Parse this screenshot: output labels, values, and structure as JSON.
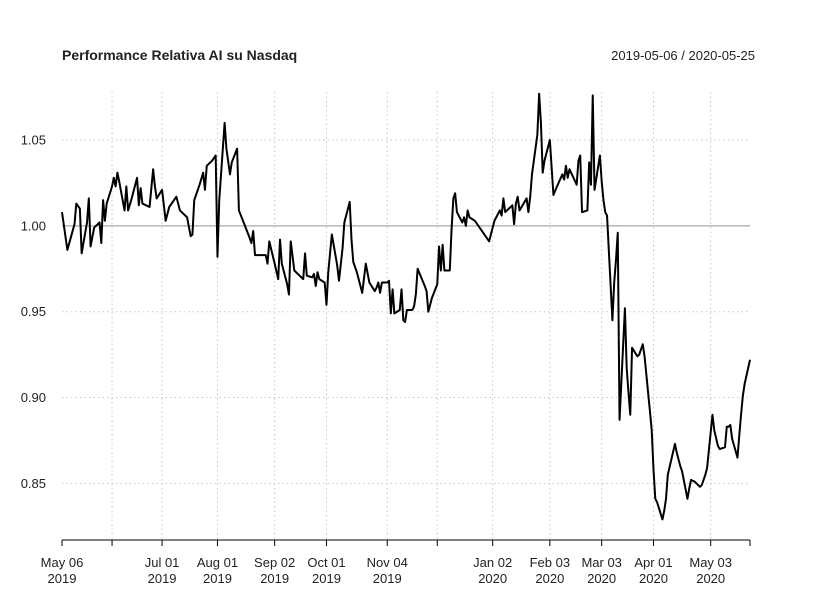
{
  "chart_data": {
    "type": "line",
    "title": "Performance Relativa AI su Nasdaq",
    "subtitle": "2019-05-06 / 2020-05-25",
    "color": "#000000",
    "grid": true,
    "reference_line": 1,
    "reference_color": "#aaaaaa",
    "xlim": [
      "2019-05-06",
      "2020-05-25"
    ],
    "ylim": [
      0.817,
      1.078
    ],
    "yticks": [
      0.85,
      {
        "value": 0.9,
        "label": "0.90"
      },
      0.95,
      {
        "value": 1,
        "label": "1.00"
      },
      1.05
    ],
    "xticks": [
      {
        "value": "2019-05-06",
        "label": [
          "May 06",
          "2019"
        ]
      },
      "2019-06-03",
      {
        "value": "2019-07-01",
        "label": [
          "Jul 01",
          "2019"
        ]
      },
      {
        "value": "2019-08-01",
        "label": [
          "Aug 01",
          "2019"
        ]
      },
      {
        "value": "2019-09-02",
        "label": [
          "Sep 02",
          "2019"
        ]
      },
      {
        "value": "2019-10-01",
        "label": [
          "Oct 01",
          "2019"
        ]
      },
      {
        "value": "2019-11-04",
        "label": [
          "Nov 04",
          "2019"
        ]
      },
      "2019-12-02",
      {
        "value": "2020-01-02",
        "label": [
          "Jan 02",
          "2020"
        ]
      },
      {
        "value": "2020-02-03",
        "label": [
          "Feb 03",
          "2020"
        ]
      },
      {
        "value": "2020-03-03",
        "label": [
          "Mar 03",
          "2020"
        ]
      },
      {
        "value": "2020-04-01",
        "label": [
          "Apr 01",
          "2020"
        ]
      },
      {
        "value": "2020-05-03",
        "label": [
          "May 03",
          "2020"
        ]
      },
      "2020-05-25"
    ],
    "x": [
      "2019-05-06",
      "2019-05-09",
      "2019-05-13",
      "2019-05-14",
      "2019-05-16",
      "2019-05-17",
      "2019-05-20",
      "2019-05-21",
      "2019-05-22",
      "2019-05-24",
      "2019-05-27",
      "2019-05-28",
      "2019-05-29",
      "2019-05-30",
      "2019-05-31",
      "2019-06-03",
      "2019-06-04",
      "2019-06-05",
      "2019-06-06",
      "2019-06-07",
      "2019-06-10",
      "2019-06-11",
      "2019-06-12",
      "2019-06-14",
      "2019-06-17",
      "2019-06-18",
      "2019-06-19",
      "2019-06-20",
      "2019-06-24",
      "2019-06-26",
      "2019-06-27",
      "2019-06-28",
      "2019-07-01",
      "2019-07-03",
      "2019-07-05",
      "2019-07-09",
      "2019-07-11",
      "2019-07-15",
      "2019-07-17",
      "2019-07-18",
      "2019-07-19",
      "2019-07-22",
      "2019-07-24",
      "2019-07-25",
      "2019-07-26",
      "2019-07-29",
      "2019-07-31",
      "2019-08-01",
      "2019-08-02",
      "2019-08-05",
      "2019-08-06",
      "2019-08-08",
      "2019-08-09",
      "2019-08-12",
      "2019-08-13",
      "2019-08-16",
      "2019-08-19",
      "2019-08-20",
      "2019-08-21",
      "2019-08-22",
      "2019-08-26",
      "2019-08-28",
      "2019-08-29",
      "2019-08-30",
      "2019-09-02",
      "2019-09-04",
      "2019-09-05",
      "2019-09-06",
      "2019-09-09",
      "2019-09-10",
      "2019-09-11",
      "2019-09-13",
      "2019-09-16",
      "2019-09-18",
      "2019-09-19",
      "2019-09-20",
      "2019-09-23",
      "2019-09-24",
      "2019-09-25",
      "2019-09-26",
      "2019-09-27",
      "2019-09-30",
      "2019-10-01",
      "2019-10-02",
      "2019-10-04",
      "2019-10-07",
      "2019-10-08",
      "2019-10-10",
      "2019-10-11",
      "2019-10-14",
      "2019-10-15",
      "2019-10-16",
      "2019-10-18",
      "2019-10-21",
      "2019-10-23",
      "2019-10-25",
      "2019-10-28",
      "2019-10-29",
      "2019-10-30",
      "2019-10-31",
      "2019-11-01",
      "2019-11-04",
      "2019-11-05",
      "2019-11-06",
      "2019-11-07",
      "2019-11-08",
      "2019-11-11",
      "2019-11-12",
      "2019-11-13",
      "2019-11-14",
      "2019-11-15",
      "2019-11-18",
      "2019-11-19",
      "2019-11-20",
      "2019-11-21",
      "2019-11-25",
      "2019-11-26",
      "2019-11-27",
      "2019-11-29",
      "2019-12-02",
      "2019-12-03",
      "2019-12-04",
      "2019-12-05",
      "2019-12-06",
      "2019-12-09",
      "2019-12-10",
      "2019-12-11",
      "2019-12-12",
      "2019-12-13",
      "2019-12-16",
      "2019-12-17",
      "2019-12-18",
      "2019-12-19",
      "2019-12-20",
      "2019-12-23",
      "2019-12-31",
      "2020-01-03",
      "2020-01-06",
      "2020-01-07",
      "2020-01-08",
      "2020-01-09",
      "2020-01-10",
      "2020-01-13",
      "2020-01-14",
      "2020-01-15",
      "2020-01-16",
      "2020-01-17",
      "2020-01-21",
      "2020-01-22",
      "2020-01-23",
      "2020-01-24",
      "2020-01-27",
      "2020-01-28",
      "2020-01-29",
      "2020-01-30",
      "2020-01-31",
      "2020-02-03",
      "2020-02-04",
      "2020-02-05",
      "2020-02-07",
      "2020-02-10",
      "2020-02-11",
      "2020-02-12",
      "2020-02-13",
      "2020-02-14",
      "2020-02-18",
      "2020-02-19",
      "2020-02-20",
      "2020-02-21",
      "2020-02-24",
      "2020-02-25",
      "2020-02-26",
      "2020-02-27",
      "2020-02-28",
      "2020-03-02",
      "2020-03-03",
      "2020-03-04",
      "2020-03-05",
      "2020-03-06",
      "2020-03-09",
      "2020-03-10",
      "2020-03-11",
      "2020-03-12",
      "2020-03-13",
      "2020-03-16",
      "2020-03-17",
      "2020-03-18",
      "2020-03-19",
      "2020-03-20",
      "2020-03-23",
      "2020-03-24",
      "2020-03-25",
      "2020-03-26",
      "2020-03-27",
      "2020-03-30",
      "2020-03-31",
      "2020-04-01",
      "2020-04-02",
      "2020-04-03",
      "2020-04-06",
      "2020-04-07",
      "2020-04-08",
      "2020-04-09",
      "2020-04-13",
      "2020-04-14",
      "2020-04-16",
      "2020-04-17",
      "2020-04-20",
      "2020-04-21",
      "2020-04-22",
      "2020-04-24",
      "2020-04-27",
      "2020-04-28",
      "2020-04-30",
      "2020-05-01",
      "2020-05-04",
      "2020-05-05",
      "2020-05-07",
      "2020-05-08",
      "2020-05-11",
      "2020-05-12",
      "2020-05-13",
      "2020-05-14",
      "2020-05-15",
      "2020-05-18",
      "2020-05-19",
      "2020-05-20",
      "2020-05-21",
      "2020-05-22",
      "2020-05-25"
    ],
    "values": [
      1.008,
      0.986,
      1.001,
      1.013,
      1.01,
      0.984,
      1.002,
      1.016,
      0.988,
      0.999,
      1.002,
      0.99,
      1.015,
      1.003,
      1.013,
      1.023,
      1.028,
      1.023,
      1.031,
      1.026,
      1.009,
      1.023,
      1.009,
      1.016,
      1.028,
      1.012,
      1.022,
      1.013,
      1.011,
      1.033,
      1.023,
      1.016,
      1.021,
      1.003,
      1.011,
      1.017,
      1.009,
      1.005,
      0.994,
      0.995,
      1.015,
      1.024,
      1.031,
      1.021,
      1.035,
      1.038,
      1.041,
      0.982,
      1.015,
      1.06,
      1.045,
      1.03,
      1.037,
      1.045,
      1.009,
      1.001,
      0.993,
      0.99,
      0.997,
      0.983,
      0.983,
      0.983,
      0.978,
      0.991,
      0.978,
      0.969,
      0.992,
      0.978,
      0.966,
      0.96,
      0.991,
      0.974,
      0.971,
      0.969,
      0.984,
      0.971,
      0.97,
      0.972,
      0.965,
      0.973,
      0.969,
      0.967,
      0.954,
      0.973,
      0.995,
      0.977,
      0.968,
      0.987,
      1.002,
      1.014,
      0.992,
      0.979,
      0.973,
      0.961,
      0.978,
      0.967,
      0.962,
      0.964,
      0.967,
      0.961,
      0.967,
      0.967,
      0.968,
      0.949,
      0.963,
      0.949,
      0.951,
      0.963,
      0.945,
      0.944,
      0.951,
      0.951,
      0.953,
      0.96,
      0.975,
      0.965,
      0.962,
      0.95,
      0.958,
      0.966,
      0.988,
      0.974,
      0.989,
      0.974,
      0.974,
      0.998,
      1.016,
      1.019,
      1.008,
      1.002,
      1.005,
      1.0,
      1.009,
      1.005,
      1.003,
      0.991,
      1.003,
      1.009,
      1.006,
      1.016,
      1.008,
      1.009,
      1.012,
      1.001,
      1.013,
      1.017,
      1.009,
      1.016,
      1.008,
      1.017,
      1.03,
      1.053,
      1.077,
      1.06,
      1.031,
      1.038,
      1.05,
      1.034,
      1.018,
      1.023,
      1.03,
      1.027,
      1.035,
      1.028,
      1.033,
      1.024,
      1.038,
      1.041,
      1.008,
      1.009,
      1.037,
      1.024,
      1.076,
      1.021,
      1.041,
      1.026,
      1.015,
      1.008,
      1.006,
      0.945,
      0.967,
      0.98,
      0.996,
      0.887,
      0.952,
      0.917,
      0.903,
      0.89,
      0.929,
      0.924,
      0.925,
      0.928,
      0.931,
      0.924,
      0.892,
      0.881,
      0.858,
      0.841,
      0.839,
      0.829,
      0.834,
      0.841,
      0.855,
      0.873,
      0.868,
      0.86,
      0.857,
      0.841,
      0.847,
      0.852,
      0.851,
      0.848,
      0.849,
      0.855,
      0.859,
      0.89,
      0.881,
      0.872,
      0.87,
      0.871,
      0.883,
      0.883,
      0.884,
      0.876,
      0.865,
      0.878,
      0.89,
      0.901,
      0.908,
      0.922
    ]
  }
}
